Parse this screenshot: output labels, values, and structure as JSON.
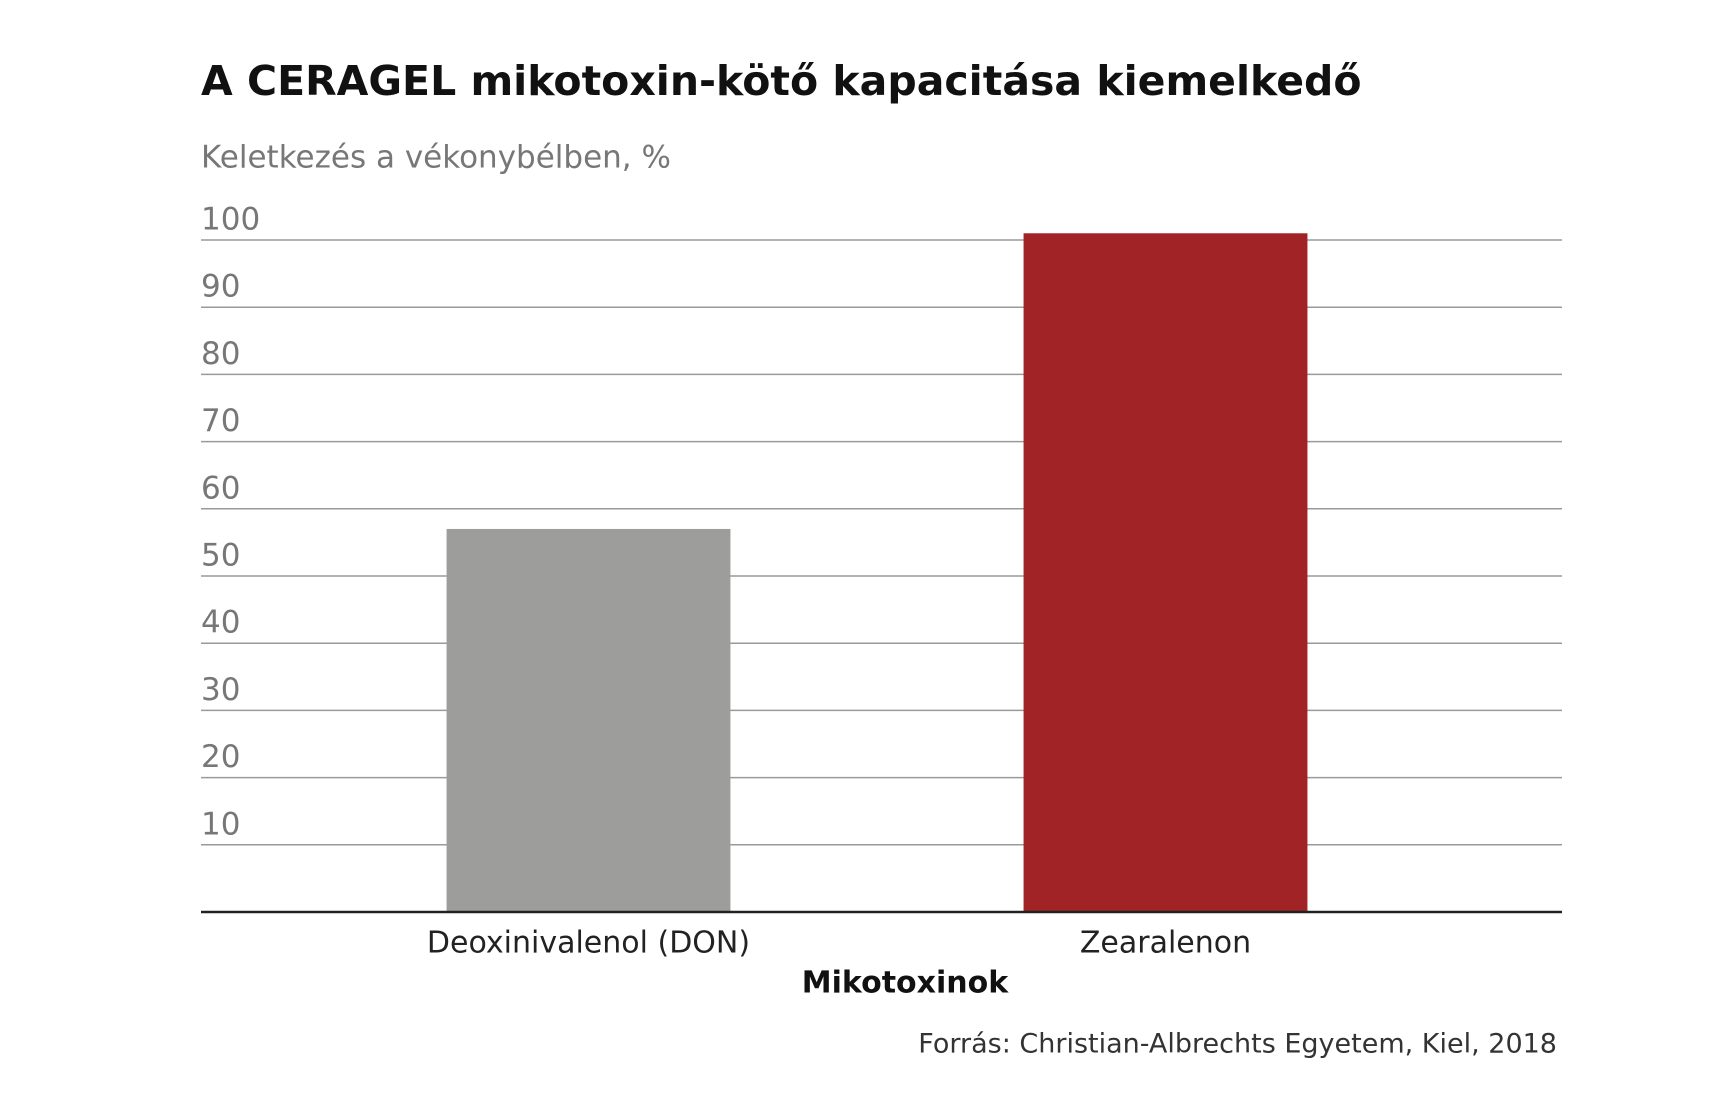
{
  "chart_data": {
    "type": "bar",
    "title": "A CERAGEL mikotoxin-kötő kapacitása kiemelkedő",
    "subtitle": "Keletkezés a vékonybélben, %",
    "x_label": "Mikotoxinok",
    "source": "Forrás: Christian-Albrechts Egyetem, Kiel, 2018",
    "categories": [
      "Deoxinivalenol (DON)",
      "Zearalenon"
    ],
    "values": [
      57,
      101
    ],
    "colors": [
      "#9d9d9c",
      "#a12326"
    ],
    "ylim": [
      0,
      100
    ],
    "yticks": [
      10,
      20,
      30,
      40,
      50,
      60,
      70,
      80,
      90,
      100
    ],
    "grid": true
  }
}
